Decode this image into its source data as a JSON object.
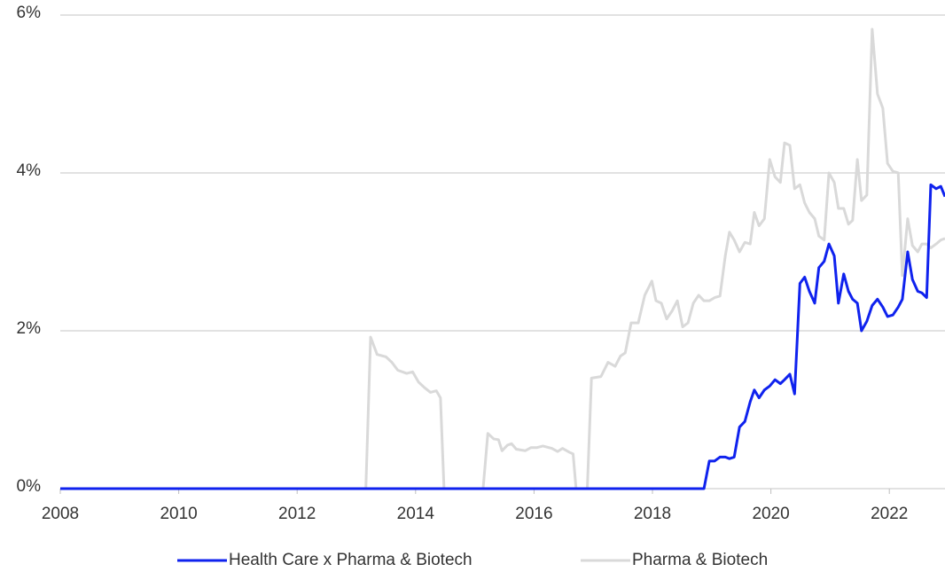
{
  "chart_data": {
    "type": "line",
    "x": [
      2008.0,
      2013.16,
      2013.24,
      2013.35,
      2013.5,
      2013.6,
      2013.7,
      2013.85,
      2013.95,
      2014.05,
      2014.15,
      2014.25,
      2014.35,
      2014.42,
      2014.48,
      2015.14,
      2015.22,
      2015.32,
      2015.4,
      2015.46,
      2015.55,
      2015.62,
      2015.7,
      2015.85,
      2015.95,
      2016.05,
      2016.15,
      2016.3,
      2016.4,
      2016.48,
      2016.6,
      2016.66,
      2016.71,
      2016.9,
      2016.97,
      2017.13,
      2017.25,
      2017.37,
      2017.46,
      2017.54,
      2017.64,
      2017.76,
      2017.87,
      2017.99,
      2018.06,
      2018.15,
      2018.24,
      2018.33,
      2018.42,
      2018.51,
      2018.6,
      2018.69,
      2018.78,
      2018.87,
      2018.96,
      2019.05,
      2019.14,
      2019.23,
      2019.3,
      2019.38,
      2019.47,
      2019.56,
      2019.65,
      2019.72,
      2019.8,
      2019.89,
      2019.98,
      2020.07,
      2020.16,
      2020.23,
      2020.32,
      2020.4,
      2020.49,
      2020.57,
      2020.65,
      2020.74,
      2020.81,
      2020.9,
      2020.98,
      2021.07,
      2021.14,
      2021.23,
      2021.31,
      2021.38,
      2021.46,
      2021.53,
      2021.62,
      2021.71,
      2021.8,
      2021.89,
      2021.97,
      2022.06,
      2022.15,
      2022.22,
      2022.31,
      2022.39,
      2022.48,
      2022.55,
      2022.63,
      2022.7,
      2022.79,
      2022.87,
      2022.94
    ],
    "series": [
      {
        "name": "Health Care x Pharma & Biotech",
        "color": "#0f22ee",
        "values": [
          0,
          0,
          0,
          0,
          0,
          0,
          0,
          0,
          0,
          0,
          0,
          0,
          0,
          0,
          0,
          0,
          0,
          0,
          0,
          0,
          0,
          0,
          0,
          0,
          0,
          0,
          0,
          0,
          0,
          0,
          0,
          0,
          0,
          0,
          0,
          0,
          0,
          0,
          0,
          0,
          0,
          0,
          0,
          0,
          0,
          0,
          0,
          0,
          0,
          0,
          0,
          0,
          0,
          0,
          0.35,
          0.35,
          0.4,
          0.4,
          0.38,
          0.4,
          0.78,
          0.85,
          1.1,
          1.25,
          1.15,
          1.25,
          1.3,
          1.38,
          1.33,
          1.38,
          1.45,
          1.2,
          2.6,
          2.68,
          2.5,
          2.35,
          2.8,
          2.88,
          3.1,
          2.95,
          2.35,
          2.72,
          2.5,
          2.4,
          2.35,
          2.0,
          2.12,
          2.32,
          2.4,
          2.3,
          2.18,
          2.2,
          2.3,
          2.4,
          3.0,
          2.65,
          2.5,
          2.48,
          2.42,
          3.85,
          3.8,
          3.83,
          3.7
        ]
      },
      {
        "name": "Pharma & Biotech",
        "color": "#d9d9d9",
        "values": [
          0,
          0,
          1.92,
          1.7,
          1.67,
          1.6,
          1.5,
          1.46,
          1.48,
          1.35,
          1.28,
          1.22,
          1.24,
          1.15,
          0,
          0,
          0.7,
          0.63,
          0.62,
          0.48,
          0.55,
          0.57,
          0.5,
          0.48,
          0.52,
          0.52,
          0.54,
          0.51,
          0.47,
          0.51,
          0.46,
          0.44,
          0,
          0,
          1.4,
          1.42,
          1.6,
          1.55,
          1.68,
          1.72,
          2.1,
          2.1,
          2.45,
          2.63,
          2.38,
          2.35,
          2.15,
          2.25,
          2.38,
          2.05,
          2.1,
          2.35,
          2.45,
          2.38,
          2.38,
          2.42,
          2.44,
          2.95,
          3.25,
          3.15,
          3.0,
          3.12,
          3.1,
          3.5,
          3.33,
          3.42,
          4.17,
          3.95,
          3.88,
          4.38,
          4.35,
          3.8,
          3.85,
          3.62,
          3.5,
          3.42,
          3.2,
          3.15,
          4.0,
          3.88,
          3.55,
          3.55,
          3.35,
          3.4,
          4.17,
          3.65,
          3.72,
          5.82,
          5.0,
          4.82,
          4.12,
          4.02,
          4.0,
          2.7,
          3.42,
          3.08,
          3.0,
          3.1,
          3.1,
          3.05,
          3.1,
          3.15,
          3.17
        ]
      }
    ],
    "xlim": [
      2008,
      2022.94
    ],
    "xticks": [
      2008,
      2010,
      2012,
      2014,
      2016,
      2018,
      2020,
      2022
    ],
    "ylim": [
      0,
      6
    ],
    "yticks": [
      {
        "value": 0,
        "label": "0%"
      },
      {
        "value": 2,
        "label": "2%"
      },
      {
        "value": 4,
        "label": "4%"
      },
      {
        "value": 6,
        "label": "6%"
      }
    ],
    "grid": true,
    "legend": "bottom"
  }
}
